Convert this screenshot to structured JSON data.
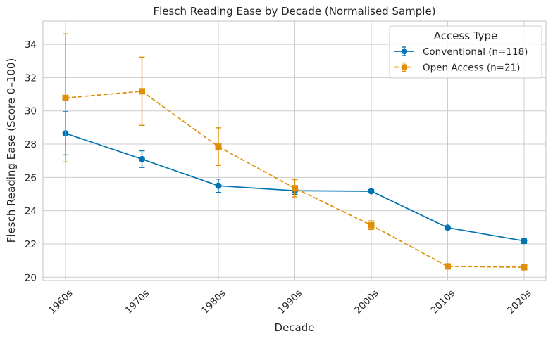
{
  "chart_data": {
    "type": "line",
    "title": "Flesch Reading Ease by Decade (Normalised Sample)",
    "xlabel": "Decade",
    "ylabel": "Flesch Reading Ease (Score 0–100)",
    "categories": [
      "1960s",
      "1970s",
      "1980s",
      "1990s",
      "2000s",
      "2010s",
      "2020s"
    ],
    "ylim": [
      19.8,
      35.4
    ],
    "yticks": [
      20,
      22,
      24,
      26,
      28,
      30,
      32,
      34
    ],
    "ytick_labels": [
      "20",
      "22",
      "24",
      "26",
      "28",
      "30",
      "32",
      "34"
    ],
    "grid": true,
    "error_bars": true,
    "legend": {
      "title": "Access Type",
      "placement": "top-right"
    },
    "series": [
      {
        "name": "Conventional (n=118)",
        "color": "#0173b2",
        "line_style": "solid",
        "marker": "circle",
        "values": [
          28.65,
          27.1,
          25.5,
          25.2,
          25.17,
          22.98,
          22.18
        ],
        "error": [
          1.3,
          0.5,
          0.4,
          0.22,
          0.1,
          0.1,
          0.15
        ]
      },
      {
        "name": "Open Access (n=21)",
        "color": "#de8f05",
        "line_style": "dashed",
        "marker": "square",
        "values": [
          30.78,
          31.18,
          27.85,
          25.35,
          23.13,
          20.65,
          20.6
        ],
        "error": [
          3.85,
          2.05,
          1.13,
          0.52,
          0.26,
          0.05,
          0.05
        ]
      }
    ]
  }
}
